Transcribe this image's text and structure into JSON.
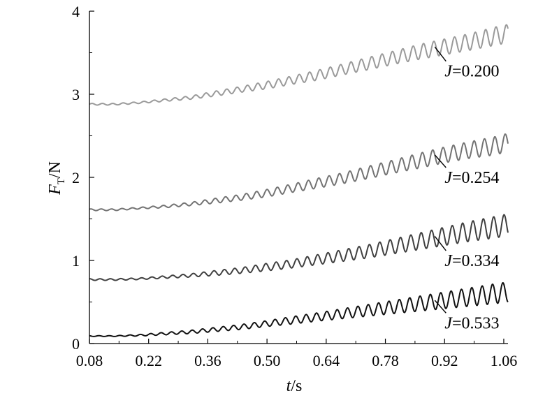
{
  "chart_data": {
    "type": "line",
    "xlabel": {
      "var": "t",
      "unit": "/s"
    },
    "ylabel": {
      "var": "F",
      "sub": "T",
      "unit": "/N"
    },
    "xlim": [
      0.08,
      1.07
    ],
    "ylim": [
      0,
      4
    ],
    "xticks": [
      "0.08",
      "0.22",
      "0.36",
      "0.50",
      "0.64",
      "0.78",
      "0.92",
      "1.06"
    ],
    "yticks": [
      "0",
      "1",
      "2",
      "3",
      "4"
    ],
    "grid": false,
    "legend": "none",
    "series": [
      {
        "name": "J=0.200",
        "color": "#9a9a9a",
        "label_at": {
          "t": 0.93,
          "F": 3.28
        },
        "x": [
          0.08,
          0.14,
          0.2,
          0.26,
          0.32,
          0.38,
          0.44,
          0.5,
          0.56,
          0.62,
          0.68,
          0.74,
          0.8,
          0.86,
          0.92,
          0.98,
          1.04,
          1.07
        ],
        "mean": [
          2.88,
          2.88,
          2.9,
          2.93,
          2.96,
          3.01,
          3.06,
          3.11,
          3.17,
          3.23,
          3.3,
          3.37,
          3.44,
          3.51,
          3.57,
          3.63,
          3.7,
          3.73
        ],
        "amp": [
          0.01,
          0.01,
          0.01,
          0.015,
          0.02,
          0.03,
          0.035,
          0.045,
          0.05,
          0.06,
          0.065,
          0.075,
          0.08,
          0.09,
          0.095,
          0.1,
          0.11,
          0.11
        ]
      },
      {
        "name": "J=0.254",
        "color": "#737373",
        "label_at": {
          "t": 0.93,
          "F": 2.0
        },
        "x": [
          0.08,
          0.14,
          0.2,
          0.26,
          0.32,
          0.38,
          0.44,
          0.5,
          0.56,
          0.62,
          0.68,
          0.74,
          0.8,
          0.86,
          0.92,
          0.98,
          1.04,
          1.07
        ],
        "mean": [
          1.61,
          1.61,
          1.63,
          1.65,
          1.68,
          1.72,
          1.76,
          1.81,
          1.87,
          1.93,
          1.99,
          2.06,
          2.13,
          2.2,
          2.27,
          2.33,
          2.38,
          2.42
        ],
        "amp": [
          0.01,
          0.01,
          0.01,
          0.015,
          0.02,
          0.03,
          0.035,
          0.045,
          0.05,
          0.06,
          0.065,
          0.075,
          0.08,
          0.09,
          0.095,
          0.1,
          0.11,
          0.11
        ]
      },
      {
        "name": "J=0.334",
        "color": "#404040",
        "label_at": {
          "t": 0.93,
          "F": 1.0
        },
        "x": [
          0.08,
          0.14,
          0.2,
          0.26,
          0.32,
          0.38,
          0.44,
          0.5,
          0.56,
          0.62,
          0.68,
          0.74,
          0.8,
          0.86,
          0.92,
          0.98,
          1.04,
          1.07
        ],
        "mean": [
          0.77,
          0.77,
          0.78,
          0.8,
          0.82,
          0.85,
          0.88,
          0.92,
          0.96,
          1.01,
          1.06,
          1.11,
          1.17,
          1.23,
          1.29,
          1.35,
          1.4,
          1.43
        ],
        "amp": [
          0.01,
          0.01,
          0.01,
          0.015,
          0.02,
          0.03,
          0.035,
          0.045,
          0.05,
          0.06,
          0.07,
          0.08,
          0.09,
          0.1,
          0.11,
          0.12,
          0.13,
          0.13
        ]
      },
      {
        "name": "J=0.533",
        "color": "#111111",
        "label_at": {
          "t": 0.93,
          "F": 0.25
        },
        "x": [
          0.08,
          0.14,
          0.2,
          0.26,
          0.32,
          0.38,
          0.44,
          0.5,
          0.56,
          0.62,
          0.68,
          0.74,
          0.8,
          0.86,
          0.92,
          0.98,
          1.04,
          1.07
        ],
        "mean": [
          0.09,
          0.09,
          0.1,
          0.12,
          0.14,
          0.17,
          0.2,
          0.24,
          0.28,
          0.32,
          0.36,
          0.4,
          0.44,
          0.48,
          0.52,
          0.56,
          0.6,
          0.62
        ],
        "amp": [
          0.005,
          0.005,
          0.01,
          0.015,
          0.02,
          0.025,
          0.03,
          0.035,
          0.045,
          0.05,
          0.06,
          0.07,
          0.08,
          0.09,
          0.1,
          0.11,
          0.12,
          0.12
        ]
      }
    ]
  }
}
